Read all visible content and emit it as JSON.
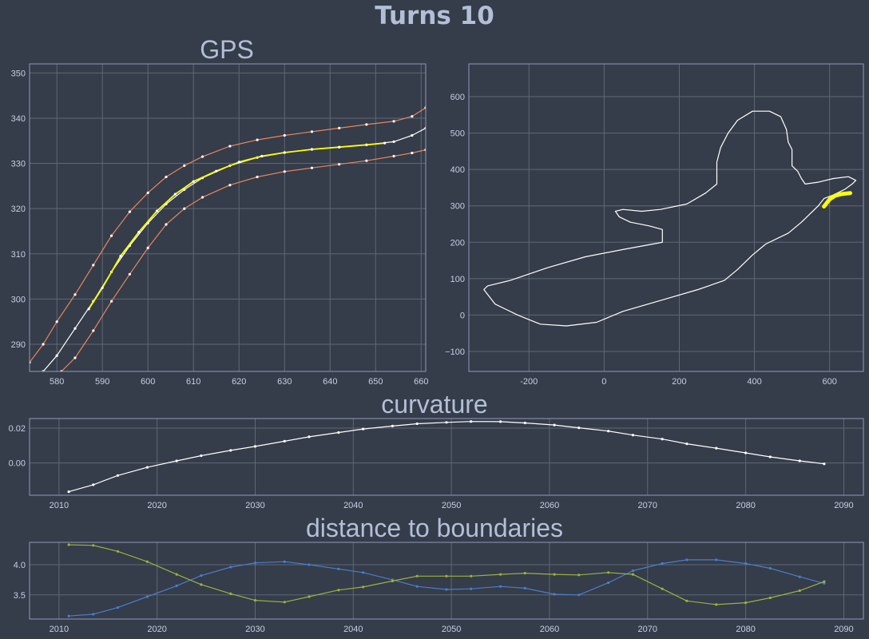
{
  "title": "Turns 10",
  "colors": {
    "background": "#353c4a",
    "plot_border": "#8f9ab8",
    "grid": "#5f6876",
    "text": "#b3bfd6",
    "tick_text": "#c7d0e3",
    "track_line": "#ffffff",
    "highlight": "#ffff00",
    "boundary": "#e8875a",
    "series_blue": "#4a7ec8",
    "series_green": "#9bb33c"
  },
  "chart_data": [
    {
      "id": "gps",
      "type": "line",
      "title": "GPS",
      "xlim": [
        574,
        661
      ],
      "ylim": [
        284,
        352
      ],
      "xticks": [
        580,
        590,
        600,
        610,
        620,
        630,
        640,
        650,
        660
      ],
      "yticks": [
        290,
        300,
        310,
        320,
        330,
        340,
        350
      ],
      "grid": true,
      "series": [
        {
          "role": "left-boundary",
          "color": "#e8875a",
          "x": [
            574,
            577,
            580,
            584,
            588,
            592,
            596,
            600,
            604,
            608,
            612,
            618,
            624,
            630,
            636,
            642,
            648,
            654,
            658,
            661
          ],
          "y": [
            286,
            290,
            295,
            301,
            307.5,
            314,
            319.3,
            323.5,
            327,
            329.5,
            331.5,
            333.8,
            335.2,
            336.2,
            337,
            337.8,
            338.6,
            339.3,
            340.4,
            342.3
          ]
        },
        {
          "role": "centerline",
          "color": "#ffffff",
          "x": [
            577,
            580,
            584,
            588,
            592,
            596,
            600,
            604,
            608,
            612,
            618,
            624,
            630,
            636,
            642,
            648,
            654,
            658,
            661
          ],
          "y": [
            284,
            287.5,
            293.5,
            299.5,
            306,
            311.8,
            316.8,
            321,
            324.2,
            326.8,
            329.5,
            331.3,
            332.4,
            333.1,
            333.6,
            334.1,
            334.8,
            336.2,
            337.8
          ]
        },
        {
          "role": "highlighted-section",
          "color": "#ffff00",
          "x": [
            587,
            590,
            594,
            598,
            602,
            606,
            610,
            615,
            620,
            625,
            630,
            636,
            642,
            648,
            652
          ],
          "y": [
            297.8,
            302.5,
            309.5,
            314.8,
            319.5,
            323.2,
            326,
            328.3,
            330.3,
            331.6,
            332.4,
            333.1,
            333.6,
            334.1,
            334.5
          ]
        },
        {
          "role": "right-boundary",
          "color": "#e8875a",
          "x": [
            581,
            584,
            588,
            592,
            596,
            600,
            604,
            608,
            612,
            618,
            624,
            630,
            636,
            642,
            648,
            654,
            658,
            661
          ],
          "y": [
            284,
            287,
            293,
            299.5,
            305.5,
            311.3,
            316.5,
            320,
            322.5,
            325.2,
            327,
            328.2,
            329,
            329.8,
            330.6,
            331.6,
            332.3,
            333
          ]
        }
      ]
    },
    {
      "id": "track",
      "type": "line",
      "title": "",
      "xlim": [
        -360,
        690
      ],
      "ylim": [
        -155,
        690
      ],
      "xticks": [
        -200,
        0,
        200,
        400,
        600
      ],
      "yticks": [
        -100,
        0,
        100,
        200,
        300,
        400,
        500,
        600
      ],
      "grid": true,
      "series": [
        {
          "role": "track-outline",
          "color": "#ffffff",
          "closed": true,
          "x": [
            -320,
            -290,
            -230,
            -170,
            -100,
            -20,
            50,
            150,
            250,
            320,
            355,
            395,
            430,
            470,
            490,
            525,
            545,
            570,
            585,
            610,
            640,
            660,
            670,
            650,
            610,
            570,
            535,
            525,
            515,
            500,
            500,
            490,
            485,
            470,
            440,
            395,
            355,
            330,
            310,
            300,
            300,
            270,
            220,
            150,
            100,
            50,
            30,
            40,
            70,
            120,
            155,
            155,
            130,
            50,
            -50,
            -150,
            -250,
            -310
          ],
          "y": [
            70,
            30,
            0,
            -25,
            -30,
            -20,
            10,
            40,
            70,
            95,
            125,
            165,
            195,
            215,
            225,
            255,
            275,
            300,
            320,
            330,
            345,
            360,
            370,
            380,
            375,
            365,
            360,
            375,
            395,
            410,
            455,
            475,
            510,
            545,
            560,
            560,
            535,
            500,
            460,
            420,
            360,
            335,
            305,
            290,
            285,
            290,
            285,
            270,
            255,
            245,
            235,
            200,
            195,
            180,
            160,
            130,
            95,
            80
          ]
        },
        {
          "role": "highlighted-section",
          "color": "#ffff00",
          "x": [
            585,
            600,
            615,
            630,
            645,
            655
          ],
          "y": [
            298,
            318,
            328,
            332,
            334,
            335
          ]
        }
      ]
    },
    {
      "id": "curvature",
      "type": "line",
      "title": "curvature",
      "xlim": [
        2007,
        2092
      ],
      "ylim": [
        -0.0185,
        0.0255
      ],
      "xticks": [
        2010,
        2020,
        2030,
        2040,
        2050,
        2060,
        2070,
        2080,
        2090
      ],
      "yticks": [
        0.0,
        0.02
      ],
      "ytick_labels": [
        "0.00",
        "0.02"
      ],
      "grid": true,
      "series": [
        {
          "name": "",
          "color": "#ffffff",
          "x": [
            2011,
            2013.5,
            2016,
            2019,
            2022,
            2024.5,
            2027.5,
            2030,
            2033,
            2035.5,
            2038.5,
            2041,
            2044,
            2046.5,
            2049.5,
            2052,
            2055,
            2057.5,
            2060.5,
            2063,
            2066,
            2068.5,
            2071.5,
            2074,
            2077,
            2080,
            2082.5,
            2085.5,
            2088
          ],
          "y": [
            -0.0165,
            -0.0125,
            -0.0072,
            -0.0025,
            0.0012,
            0.0042,
            0.0072,
            0.0095,
            0.0125,
            0.015,
            0.0175,
            0.0195,
            0.0212,
            0.0225,
            0.0233,
            0.0238,
            0.0237,
            0.023,
            0.0218,
            0.0202,
            0.0183,
            0.016,
            0.0137,
            0.011,
            0.0085,
            0.0058,
            0.0035,
            0.0012,
            -0.0005
          ]
        }
      ]
    },
    {
      "id": "distance",
      "type": "line",
      "title": "distance to boundaries",
      "xlim": [
        2007,
        2092
      ],
      "ylim": [
        3.1,
        4.37
      ],
      "xticks": [
        2010,
        2020,
        2030,
        2040,
        2050,
        2060,
        2070,
        2080,
        2090
      ],
      "yticks": [
        3.5,
        4.0
      ],
      "ytick_labels": [
        "3.5",
        "4.0"
      ],
      "grid": true,
      "series": [
        {
          "name": "",
          "color": "#4a7ec8",
          "x": [
            2011,
            2013.5,
            2016,
            2019,
            2022,
            2024.5,
            2027.5,
            2030,
            2033,
            2035.5,
            2038.5,
            2041,
            2044,
            2046.5,
            2049.5,
            2052,
            2055,
            2057.5,
            2060.5,
            2063,
            2066,
            2068.5,
            2071.5,
            2074,
            2077,
            2080,
            2082.5,
            2085.5,
            2088
          ],
          "y": [
            3.15,
            3.18,
            3.29,
            3.47,
            3.65,
            3.82,
            3.96,
            4.03,
            4.05,
            4.0,
            3.93,
            3.87,
            3.75,
            3.64,
            3.59,
            3.6,
            3.64,
            3.61,
            3.51,
            3.5,
            3.7,
            3.9,
            4.02,
            4.08,
            4.08,
            4.02,
            3.94,
            3.8,
            3.69
          ]
        },
        {
          "name": "",
          "color": "#9bb33c",
          "x": [
            2011,
            2013.5,
            2016,
            2019,
            2022,
            2024.5,
            2027.5,
            2030,
            2033,
            2035.5,
            2038.5,
            2041,
            2044,
            2046.5,
            2049.5,
            2052,
            2055,
            2057.5,
            2060.5,
            2063,
            2066,
            2068.5,
            2071.5,
            2074,
            2077,
            2080,
            2082.5,
            2085.5,
            2088
          ],
          "y": [
            4.33,
            4.32,
            4.22,
            4.05,
            3.84,
            3.67,
            3.52,
            3.41,
            3.38,
            3.47,
            3.58,
            3.63,
            3.73,
            3.81,
            3.81,
            3.81,
            3.84,
            3.86,
            3.84,
            3.83,
            3.87,
            3.84,
            3.6,
            3.4,
            3.34,
            3.37,
            3.45,
            3.57,
            3.72
          ]
        }
      ]
    }
  ]
}
